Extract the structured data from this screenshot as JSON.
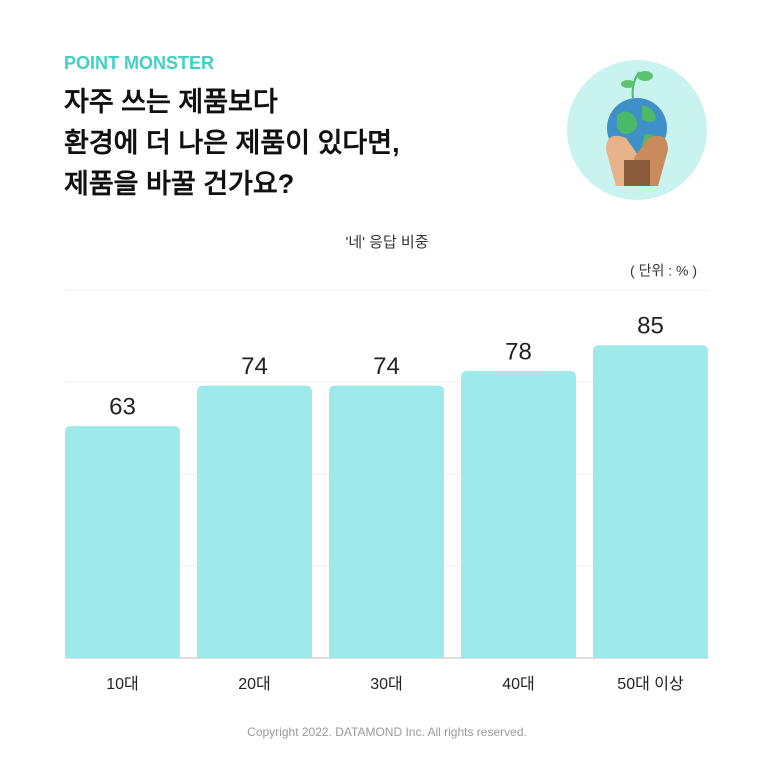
{
  "brand": "POINT MONSTER",
  "chart_data": {
    "type": "bar",
    "title": [
      "자주 쓰는 제품보다",
      "환경에 더 나은 제품이 있다면,",
      "제품을 바꿀 건가요?"
    ],
    "subtitle": "'네' 응답 비중",
    "unit_label": "( 단위 : % )",
    "categories": [
      "10대",
      "20대",
      "30대",
      "40대",
      "50대 이상"
    ],
    "values": [
      63,
      74,
      74,
      78,
      85
    ],
    "color": "#9eeaea",
    "ylim": [
      0,
      100
    ],
    "yticks": [
      0,
      25,
      50,
      75,
      100
    ],
    "grid": true
  },
  "footer": "Copyright 2022. DATAMOND Inc. All rights reserved."
}
